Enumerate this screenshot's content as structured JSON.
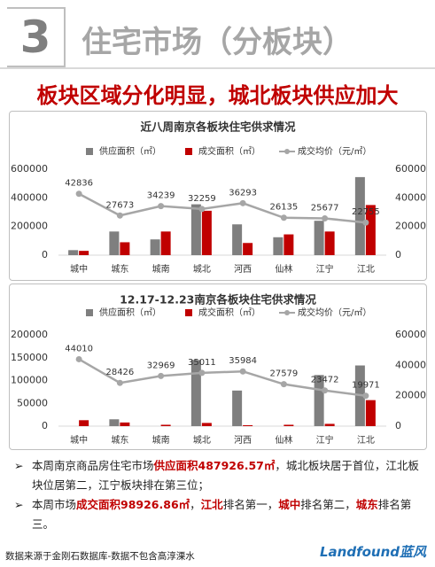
{
  "header": {
    "number": "3",
    "title": "住宅市场（分板块）"
  },
  "headline": "板块区域分化明显，城北板块供应加大",
  "chart_data": [
    {
      "type": "bar_line",
      "title": "近八周南京各板块住宅供求情况",
      "categories": [
        "城中",
        "城东",
        "城南",
        "城北",
        "河西",
        "仙林",
        "江宁",
        "江北"
      ],
      "series": [
        {
          "name": "供应面积（㎡）",
          "color": "#7f7f7f",
          "type": "bar",
          "values": [
            35000,
            165000,
            110000,
            355000,
            215000,
            125000,
            240000,
            545000
          ]
        },
        {
          "name": "成交面积（㎡）",
          "color": "#c00000",
          "type": "bar",
          "values": [
            30000,
            90000,
            165000,
            310000,
            85000,
            145000,
            165000,
            350000
          ]
        },
        {
          "name": "成交均价（元/㎡）",
          "color": "#a6a6a6",
          "type": "line",
          "axis": "y2",
          "values": [
            42836,
            27673,
            34239,
            32259,
            36293,
            26135,
            25677,
            22755
          ]
        }
      ],
      "ylim": [
        0,
        600000
      ],
      "yticks": [
        0,
        200000,
        400000,
        600000
      ],
      "y2lim": [
        0,
        60000
      ],
      "y2ticks": [
        0,
        20000,
        40000,
        60000
      ],
      "data_labels": true
    },
    {
      "type": "bar_line",
      "title": "12.17-12.23南京各板块住宅供求情况",
      "categories": [
        "城中",
        "城东",
        "城南",
        "城北",
        "河西",
        "仙林",
        "江宁",
        "江北"
      ],
      "series": [
        {
          "name": "供应面积（㎡）",
          "color": "#7f7f7f",
          "type": "bar",
          "values": [
            0,
            15000,
            0,
            145000,
            78000,
            0,
            112000,
            133000
          ]
        },
        {
          "name": "成交面积（㎡）",
          "color": "#c00000",
          "type": "bar",
          "values": [
            13000,
            8000,
            3000,
            7000,
            2000,
            3000,
            5000,
            57000
          ]
        },
        {
          "name": "成交均价（元/㎡）",
          "color": "#a6a6a6",
          "type": "line",
          "axis": "y2",
          "values": [
            44010,
            28426,
            32969,
            35011,
            35984,
            27579,
            23472,
            19971
          ]
        }
      ],
      "ylim": [
        0,
        200000
      ],
      "yticks": [
        0,
        50000,
        100000,
        150000,
        200000
      ],
      "y2lim": [
        0,
        60000
      ],
      "y2ticks": [
        0,
        20000,
        40000,
        60000
      ],
      "data_labels": true
    }
  ],
  "bullets": [
    [
      {
        "text": "本周南京商品房住宅市场",
        "em": false
      },
      {
        "text": "供应面积487926.57㎡",
        "em": true
      },
      {
        "text": "，城北板块居于首位，江北板块位居第二，江宁板块排在第三位；",
        "em": false
      }
    ],
    [
      {
        "text": "本周市场",
        "em": false
      },
      {
        "text": "成交面积98926.86㎡",
        "em": true
      },
      {
        "text": "，",
        "em": false
      },
      {
        "text": "江北",
        "em": true
      },
      {
        "text": "排名第一，",
        "em": false
      },
      {
        "text": "城中",
        "em": true
      },
      {
        "text": "排名第二，",
        "em": false
      },
      {
        "text": "城东",
        "em": true
      },
      {
        "text": "排名第三。",
        "em": false
      }
    ]
  ],
  "footer": {
    "source": "数据来源于金刚石数据库-数据不包含高淳溧水",
    "logo": "Landfound蓝风"
  }
}
